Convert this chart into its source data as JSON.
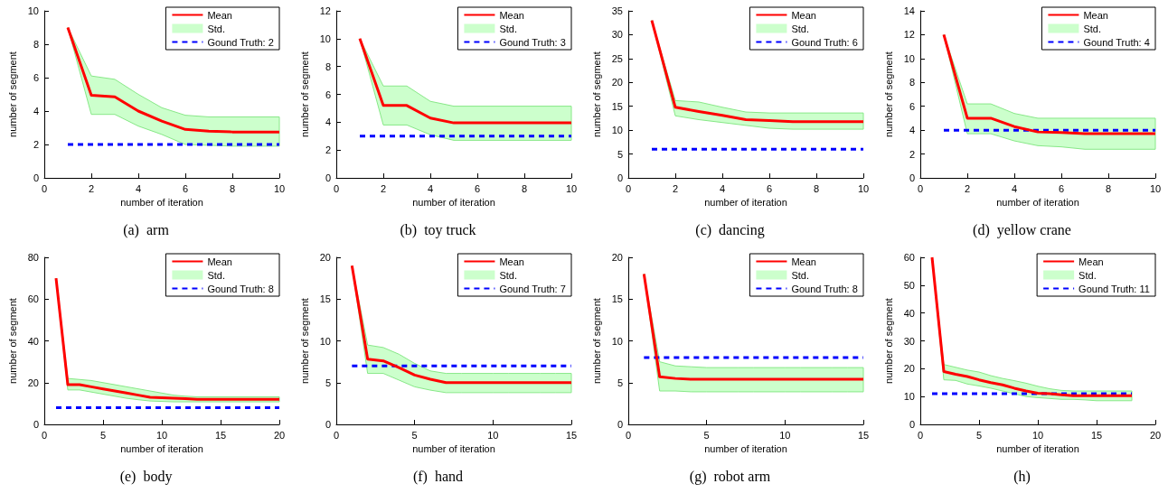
{
  "chart_data": [
    {
      "type": "line",
      "xlabel": "number of iteration",
      "ylabel": "number of segment",
      "annotations": [
        "(a)  arm",
        "Std."
      ],
      "legend": "top right",
      "marker": "none",
      "grid": false,
      "x": [
        1,
        2,
        3,
        4,
        5,
        6,
        7,
        8,
        9,
        10
      ],
      "xlim": [
        0,
        10
      ],
      "xticks": [
        0,
        2,
        4,
        6,
        8,
        10
      ],
      "ylim": [
        0,
        10
      ],
      "yticks": [
        0,
        2,
        4,
        6,
        8,
        10
      ],
      "series": [
        {
          "name": "Mean",
          "color": "#ff0000",
          "values": [
            9,
            4.95,
            4.85,
            4.0,
            3.4,
            2.9,
            2.8,
            2.75,
            2.75,
            2.75
          ],
          "lower": [
            9,
            3.8,
            3.8,
            3.1,
            2.6,
            2.0,
            1.95,
            1.9,
            1.9,
            1.9
          ],
          "upper": [
            9,
            6.1,
            5.9,
            5.0,
            4.2,
            3.75,
            3.65,
            3.65,
            3.65,
            3.65
          ]
        },
        {
          "name": "Gound Truth: 2",
          "color": "#0000ff",
          "line_style": "dashed",
          "values": [
            2,
            2,
            2,
            2,
            2,
            2,
            2,
            2,
            2,
            2
          ]
        }
      ]
    },
    {
      "type": "line",
      "xlabel": "number of iteration",
      "ylabel": "number of segment",
      "annotations": [
        "(b)  toy truck",
        "Std."
      ],
      "legend": "top right",
      "marker": "none",
      "grid": false,
      "x": [
        1,
        2,
        3,
        4,
        5,
        6,
        7,
        8,
        9,
        10
      ],
      "xlim": [
        0,
        10
      ],
      "xticks": [
        0,
        2,
        4,
        6,
        8,
        10
      ],
      "ylim": [
        0,
        12
      ],
      "yticks": [
        0,
        2,
        4,
        6,
        8,
        10,
        12
      ],
      "series": [
        {
          "name": "Mean",
          "color": "#ff0000",
          "values": [
            10,
            5.2,
            5.2,
            4.3,
            3.95,
            3.95,
            3.95,
            3.95,
            3.95,
            3.95
          ],
          "lower": [
            10,
            3.8,
            3.8,
            3.1,
            2.7,
            2.7,
            2.7,
            2.7,
            2.7,
            2.7
          ],
          "upper": [
            10,
            6.6,
            6.6,
            5.5,
            5.15,
            5.15,
            5.15,
            5.15,
            5.15,
            5.15
          ]
        },
        {
          "name": "Gound Truth: 3",
          "color": "#0000ff",
          "line_style": "dashed",
          "values": [
            3,
            3,
            3,
            3,
            3,
            3,
            3,
            3,
            3,
            3
          ]
        }
      ]
    },
    {
      "type": "line",
      "xlabel": "number of iteration",
      "ylabel": "number of segment",
      "annotations": [
        "(c)  dancing",
        "Std."
      ],
      "legend": "top right",
      "marker": "none",
      "grid": false,
      "x": [
        1,
        2,
        3,
        4,
        5,
        6,
        7,
        8,
        9,
        10
      ],
      "xlim": [
        0,
        10
      ],
      "xticks": [
        0,
        2,
        4,
        6,
        8,
        10
      ],
      "ylim": [
        0,
        35
      ],
      "yticks": [
        0,
        5,
        10,
        15,
        20,
        25,
        30,
        35
      ],
      "series": [
        {
          "name": "Mean",
          "color": "#ff0000",
          "values": [
            33,
            14.8,
            13.9,
            13.1,
            12.2,
            12.0,
            11.8,
            11.8,
            11.8,
            11.8
          ],
          "lower": [
            33,
            13.0,
            12.2,
            11.6,
            11.0,
            10.4,
            10.2,
            10.2,
            10.2,
            10.2
          ],
          "upper": [
            33,
            16.2,
            15.9,
            14.8,
            13.8,
            13.6,
            13.6,
            13.6,
            13.6,
            13.6
          ]
        },
        {
          "name": "Gound Truth: 6",
          "color": "#0000ff",
          "line_style": "dashed",
          "values": [
            6,
            6,
            6,
            6,
            6,
            6,
            6,
            6,
            6,
            6
          ]
        }
      ]
    },
    {
      "type": "line",
      "xlabel": "number of iteration",
      "ylabel": "number of segment",
      "annotations": [
        "(d)  yellow crane",
        "Std."
      ],
      "legend": "top right",
      "marker": "none",
      "grid": false,
      "x": [
        1,
        2,
        3,
        4,
        5,
        6,
        7,
        8,
        9,
        10
      ],
      "xlim": [
        0,
        10
      ],
      "xticks": [
        0,
        2,
        4,
        6,
        8,
        10
      ],
      "ylim": [
        0,
        14
      ],
      "yticks": [
        0,
        2,
        4,
        6,
        8,
        10,
        12,
        14
      ],
      "series": [
        {
          "name": "Mean",
          "color": "#ff0000",
          "values": [
            12,
            5.0,
            5.0,
            4.3,
            3.85,
            3.8,
            3.7,
            3.7,
            3.7,
            3.7
          ],
          "lower": [
            12,
            3.7,
            3.7,
            3.1,
            2.7,
            2.6,
            2.4,
            2.4,
            2.4,
            2.4
          ],
          "upper": [
            12,
            6.2,
            6.2,
            5.4,
            5.0,
            5.0,
            5.0,
            5.0,
            5.0,
            5.0
          ]
        },
        {
          "name": "Gound Truth: 4",
          "color": "#0000ff",
          "line_style": "dashed",
          "values": [
            4,
            4,
            4,
            4,
            4,
            4,
            4,
            4,
            4,
            4
          ]
        }
      ]
    },
    {
      "type": "line",
      "xlabel": "number of iteration",
      "ylabel": "number of segment",
      "annotations": [
        "(e)  body",
        "Std."
      ],
      "legend": "top right",
      "marker": "none",
      "grid": false,
      "x": [
        1,
        2,
        3,
        4,
        5,
        6,
        7,
        8,
        9,
        10,
        11,
        12,
        13,
        14,
        15,
        16,
        17,
        18,
        19,
        20
      ],
      "xlim": [
        0,
        20
      ],
      "xticks": [
        0,
        5,
        10,
        15,
        20
      ],
      "ylim": [
        0,
        80
      ],
      "yticks": [
        0,
        20,
        40,
        60,
        80
      ],
      "series": [
        {
          "name": "Mean",
          "color": "#ff0000",
          "values": [
            70,
            19,
            19,
            18,
            17,
            16,
            15,
            14,
            13,
            12.8,
            12.5,
            12.3,
            12,
            12,
            12,
            12,
            12,
            12,
            12,
            12
          ],
          "lower": [
            70,
            16.5,
            16.5,
            15.5,
            14.5,
            13.5,
            12.5,
            11.8,
            11.2,
            11,
            10.8,
            10.8,
            10.8,
            10.8,
            10.8,
            10.8,
            10.8,
            10.8,
            10.8,
            10.8
          ],
          "upper": [
            70,
            22,
            21.5,
            21,
            20,
            19,
            18,
            17,
            16,
            15,
            14,
            13.5,
            13.2,
            13.2,
            13.2,
            13.2,
            13.2,
            13.2,
            13.2,
            13.2
          ]
        },
        {
          "name": "Gound Truth: 8",
          "color": "#0000ff",
          "line_style": "dashed",
          "values": [
            8,
            8,
            8,
            8,
            8,
            8,
            8,
            8,
            8,
            8,
            8,
            8,
            8,
            8,
            8,
            8,
            8,
            8,
            8,
            8
          ]
        }
      ]
    },
    {
      "type": "line",
      "xlabel": "number of iteration",
      "ylabel": "number of segment",
      "annotations": [
        "(f)  hand",
        "Std."
      ],
      "legend": "top right",
      "marker": "none",
      "grid": false,
      "x": [
        1,
        2,
        3,
        4,
        5,
        6,
        7,
        8,
        9,
        10,
        11,
        12,
        13,
        14,
        15
      ],
      "xlim": [
        0,
        15
      ],
      "xticks": [
        0,
        5,
        10,
        15
      ],
      "ylim": [
        0,
        20
      ],
      "yticks": [
        0,
        5,
        10,
        15,
        20
      ],
      "series": [
        {
          "name": "Mean",
          "color": "#ff0000",
          "values": [
            19,
            7.8,
            7.6,
            6.8,
            5.9,
            5.4,
            5.0,
            5.0,
            5.0,
            5.0,
            5.0,
            5.0,
            5.0,
            5.0,
            5.0
          ],
          "lower": [
            19,
            6.1,
            6.1,
            5.3,
            4.5,
            4.1,
            3.8,
            3.8,
            3.8,
            3.8,
            3.8,
            3.8,
            3.8,
            3.8,
            3.8
          ],
          "upper": [
            19,
            9.5,
            9.2,
            8.4,
            7.3,
            6.4,
            6.1,
            6.1,
            6.1,
            6.1,
            6.1,
            6.1,
            6.1,
            6.1,
            6.1
          ]
        },
        {
          "name": "Gound Truth: 7",
          "color": "#0000ff",
          "line_style": "dashed",
          "values": [
            7,
            7,
            7,
            7,
            7,
            7,
            7,
            7,
            7,
            7,
            7,
            7,
            7,
            7,
            7
          ]
        }
      ]
    },
    {
      "type": "line",
      "xlabel": "number of iteration",
      "ylabel": "number of segment",
      "annotations": [
        "(g)  robot arm",
        "Std."
      ],
      "legend": "top right",
      "marker": "none",
      "grid": false,
      "x": [
        1,
        2,
        3,
        4,
        5,
        6,
        7,
        8,
        9,
        10,
        11,
        12,
        13,
        14,
        15
      ],
      "xlim": [
        0,
        15
      ],
      "xticks": [
        0,
        5,
        10,
        15
      ],
      "ylim": [
        0,
        20
      ],
      "yticks": [
        0,
        5,
        10,
        15,
        20
      ],
      "series": [
        {
          "name": "Mean",
          "color": "#ff0000",
          "values": [
            18,
            5.7,
            5.5,
            5.4,
            5.4,
            5.4,
            5.4,
            5.4,
            5.4,
            5.4,
            5.4,
            5.4,
            5.4,
            5.4,
            5.4
          ],
          "lower": [
            18,
            4.0,
            4.0,
            3.9,
            3.9,
            3.9,
            3.9,
            3.9,
            3.9,
            3.9,
            3.9,
            3.9,
            3.9,
            3.9,
            3.9
          ],
          "upper": [
            18,
            7.5,
            7.0,
            6.9,
            6.8,
            6.8,
            6.8,
            6.8,
            6.8,
            6.8,
            6.8,
            6.8,
            6.8,
            6.8,
            6.8
          ]
        },
        {
          "name": "Gound Truth: 8",
          "color": "#0000ff",
          "line_style": "dashed",
          "values": [
            8,
            8,
            8,
            8,
            8,
            8,
            8,
            8,
            8,
            8,
            8,
            8,
            8,
            8,
            8
          ]
        }
      ]
    },
    {
      "type": "line",
      "xlabel": "number of iteration",
      "ylabel": "number of segment",
      "annotations": [
        "(h)",
        "Std."
      ],
      "legend": "top right",
      "marker": "none",
      "grid": false,
      "x": [
        1,
        2,
        3,
        4,
        5,
        6,
        7,
        8,
        9,
        10,
        11,
        12,
        13,
        14,
        15,
        16,
        17,
        18
      ],
      "xlim": [
        0,
        20
      ],
      "xticks": [
        0,
        5,
        10,
        15,
        20
      ],
      "ylim": [
        0,
        60
      ],
      "yticks": [
        0,
        10,
        20,
        30,
        40,
        50,
        60
      ],
      "series": [
        {
          "name": "Mean",
          "color": "#ff0000",
          "values": [
            60,
            19,
            18,
            17.2,
            16,
            15,
            14.2,
            13,
            12,
            11.2,
            11,
            10.6,
            10.3,
            10.3,
            10.3,
            10.3,
            10.3,
            10.3
          ],
          "lower": [
            60,
            16,
            15.8,
            14.5,
            13.8,
            13,
            12,
            11,
            10,
            9.6,
            9.3,
            9,
            9,
            8.8,
            8.5,
            8.5,
            8.5,
            8.5
          ],
          "upper": [
            60,
            21.5,
            20.5,
            19.5,
            18.8,
            17.5,
            16.5,
            15.7,
            14.8,
            13.7,
            12.8,
            12.2,
            12,
            12,
            12,
            12,
            12,
            12
          ]
        },
        {
          "name": "Gound Truth: 11",
          "color": "#0000ff",
          "line_style": "dashed",
          "values": [
            11,
            11,
            11,
            11,
            11,
            11,
            11,
            11,
            11,
            11,
            11,
            11,
            11,
            11,
            11,
            11,
            11,
            11
          ]
        }
      ]
    }
  ]
}
